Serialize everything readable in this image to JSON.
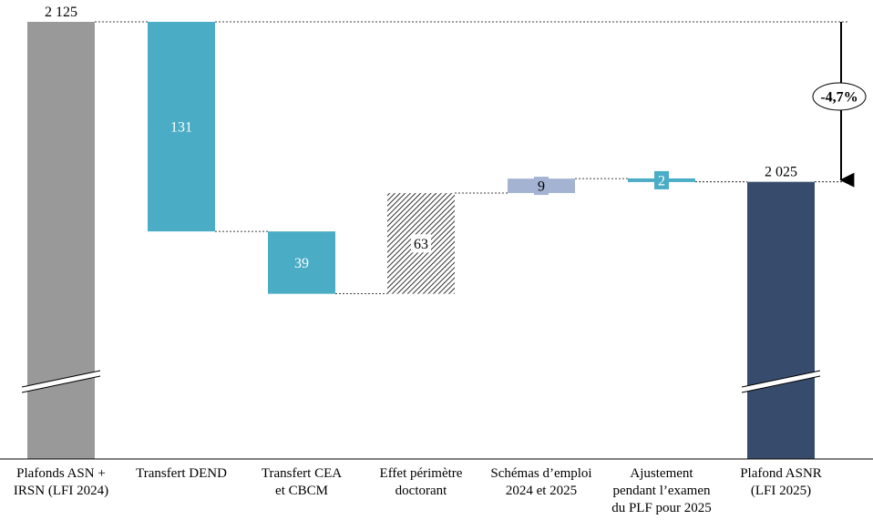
{
  "chart_data": {
    "type": "bar",
    "subtype": "waterfall",
    "title": "",
    "xlabel": "",
    "ylabel": "",
    "axis_break": true,
    "grid": false,
    "categories": [
      [
        "Plafonds ASN +",
        "IRSN (LFI 2024)"
      ],
      [
        "Transfert DEND"
      ],
      [
        "Transfert CEA",
        "et CBCM"
      ],
      [
        "Effet périmètre",
        "doctorant"
      ],
      [
        "Schémas d’emploi",
        "2024 et 2025"
      ],
      [
        "Ajustement",
        "pendant l’examen",
        "du PLF pour 2025"
      ],
      [
        "Plafond ASNR",
        "(LFI 2025)"
      ]
    ],
    "steps": [
      {
        "kind": "total",
        "value": 2125,
        "label": "2 125",
        "color": "#999999"
      },
      {
        "kind": "delta",
        "value": -131,
        "label": "131",
        "color": "#4BACC6"
      },
      {
        "kind": "delta",
        "value": -39,
        "label": "39",
        "color": "#4BACC6"
      },
      {
        "kind": "delta",
        "value": 63,
        "label": "63",
        "color": "hatched"
      },
      {
        "kind": "delta",
        "value": 9,
        "label": "9",
        "color": "#A3B3D1"
      },
      {
        "kind": "delta",
        "value": -2,
        "label": "2",
        "color": "#4BACC6"
      },
      {
        "kind": "total",
        "value": 2025,
        "label": "2 025",
        "color": "#374C6D"
      }
    ],
    "change_annotation": {
      "label": "-4,7%",
      "from": 2125,
      "to": 2025
    }
  }
}
